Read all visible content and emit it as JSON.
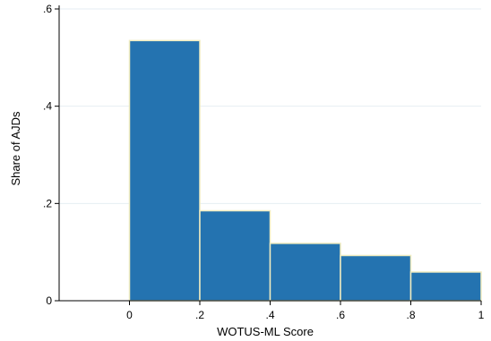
{
  "chart_data": {
    "type": "bar",
    "title": "",
    "xlabel": "WOTUS-ML Score",
    "ylabel": "Share of AJDs",
    "bins": [
      {
        "x0": 0.0,
        "x1": 0.2,
        "value": 0.535
      },
      {
        "x0": 0.2,
        "x1": 0.4,
        "value": 0.185
      },
      {
        "x0": 0.4,
        "x1": 0.6,
        "value": 0.118
      },
      {
        "x0": 0.6,
        "x1": 0.8,
        "value": 0.093
      },
      {
        "x0": 0.8,
        "x1": 1.0,
        "value": 0.059
      }
    ],
    "xlim": [
      -0.2,
      1.0
    ],
    "ylim": [
      0,
      0.6
    ],
    "x_ticks": [
      {
        "value": 0,
        "label": "0"
      },
      {
        "value": 0.2,
        "label": ".2"
      },
      {
        "value": 0.4,
        "label": ".4"
      },
      {
        "value": 0.6,
        "label": ".6"
      },
      {
        "value": 0.8,
        "label": ".8"
      },
      {
        "value": 1.0,
        "label": "1"
      }
    ],
    "y_ticks": [
      {
        "value": 0,
        "label": "0"
      },
      {
        "value": 0.2,
        "label": ".2"
      },
      {
        "value": 0.4,
        "label": ".4"
      },
      {
        "value": 0.6,
        "label": ".6"
      }
    ],
    "grid": true,
    "colors": {
      "bar_fill": "#2473b0",
      "bar_stroke": "#f0ecc0",
      "grid": "#e6eef3",
      "axis": "#000000"
    }
  }
}
